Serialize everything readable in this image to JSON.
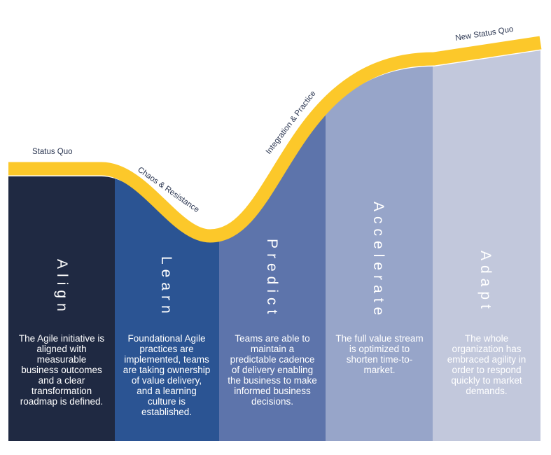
{
  "palette": {
    "align": "#1f2942",
    "learn": "#2b5493",
    "predict": "#5d74ab",
    "accelerate": "#97a5c9",
    "adapt": "#c2c8dc",
    "curve": "#fcc82a",
    "label": "#2c3752"
  },
  "curve_labels": {
    "status_quo": "Status Quo",
    "chaos": "Chaos & Resistance",
    "integration": "Integration & Practice",
    "new_status_quo": "New Status Quo"
  },
  "stages": [
    {
      "id": "align",
      "title": "Align",
      "description": "The Agile initiative is aligned with measurable business outcomes and a clear transformation roadmap is defined."
    },
    {
      "id": "learn",
      "title": "Learn",
      "description": "Foundational Agile practices are implemented, teams are taking ownership of value delivery, and a learning culture is established."
    },
    {
      "id": "predict",
      "title": "Predict",
      "description": "Teams are able to maintain a predictable cadence of delivery enabling the business to make informed business decisions."
    },
    {
      "id": "accelerate",
      "title": "Accelerate",
      "description": "The full value stream is optimized to shorten time-to-market."
    },
    {
      "id": "adapt",
      "title": "Adapt",
      "description": "The whole organization has embraced agility in order to respond quickly to market demands."
    }
  ]
}
